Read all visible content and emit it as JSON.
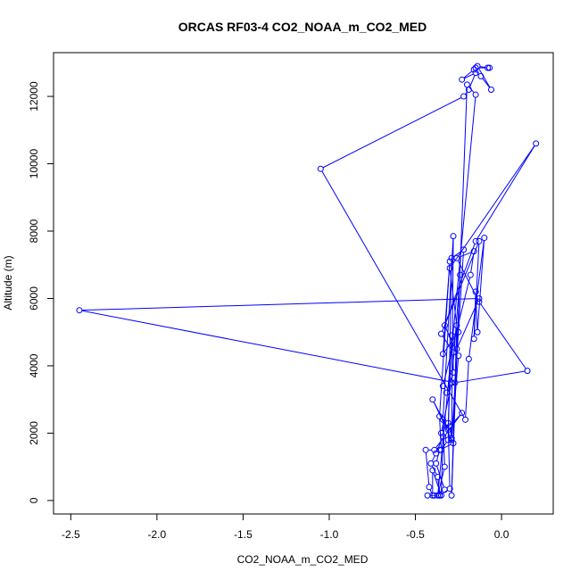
{
  "chart_data": {
    "type": "line",
    "title": "ORCAS RF03-4 CO2_NOAA_m_CO2_MED",
    "xlabel": "CO2_NOAA_m_CO2_MED",
    "ylabel": "Altitude (m)",
    "xlim": [
      -2.6,
      0.3
    ],
    "ylim": [
      -400,
      13300
    ],
    "x_ticks": [
      -2.5,
      -2.0,
      -1.5,
      -1.0,
      -0.5,
      0.0
    ],
    "x_tick_labels": [
      "-2.5",
      "-2.0",
      "-1.5",
      "-1.0",
      "-0.5",
      "0.0"
    ],
    "y_ticks": [
      0,
      2000,
      4000,
      6000,
      8000,
      10000,
      12000
    ],
    "y_tick_labels": [
      "0",
      "2000",
      "4000",
      "6000",
      "8000",
      "10000",
      "12000"
    ],
    "grid": false,
    "series_color": "#0000ff",
    "series": [
      {
        "x": [
          -0.36,
          -0.43,
          -0.39,
          -0.33,
          -0.38,
          -0.36,
          -0.28,
          -0.4,
          -0.31,
          -0.29,
          -0.25,
          -0.34,
          -0.3,
          -0.36,
          -0.35,
          -0.31,
          -0.29,
          -0.22,
          -0.29,
          -0.25,
          -0.33,
          -0.15,
          0.2,
          -0.3,
          -0.26,
          -0.29,
          -0.2,
          -0.15,
          -0.37,
          -0.33,
          -0.34,
          -0.28,
          -0.29,
          -0.3,
          -0.23,
          -0.39,
          -0.44,
          -0.42,
          -0.4,
          -0.4,
          -0.35,
          -0.34,
          -0.38,
          -0.41,
          -0.37,
          -0.36,
          -0.3,
          -0.31,
          -0.35,
          -0.29,
          -0.24,
          -0.26,
          -0.13,
          -2.45,
          -0.27,
          0.15,
          -0.13,
          -0.26,
          -0.16,
          -0.18,
          -0.34,
          -0.32,
          -0.28,
          -0.28,
          -0.35,
          -0.13,
          -0.16,
          -0.15,
          -0.14,
          -0.1,
          -0.19,
          -0.21,
          -1.05,
          -0.22,
          -0.19,
          -0.15,
          -0.23,
          -0.16,
          -0.12,
          -0.06,
          -0.14,
          -0.08,
          -0.15,
          -0.07
        ],
        "y": [
          150,
          150,
          150,
          320,
          1100,
          1500,
          1700,
          3000,
          2100,
          4900,
          5000,
          4350,
          7100,
          2500,
          1500,
          1800,
          7200,
          7450,
          1800,
          4300,
          5200,
          7700,
          10600,
          6900,
          5200,
          150,
          12350,
          12050,
          150,
          1000,
          2400,
          7850,
          1850,
          2200,
          2600,
          1500,
          1500,
          400,
          150,
          900,
          150,
          1900,
          1400,
          1100,
          700,
          150,
          350,
          2300,
          2000,
          3500,
          6700,
          4500,
          6000,
          5650,
          3500,
          3850,
          5900,
          7200,
          7400,
          6700,
          3400,
          3200,
          3800,
          4400,
          4950,
          7700,
          4800,
          6200,
          5000,
          7800,
          4200,
          2400,
          9850,
          12000,
          12200,
          12700,
          12500,
          12800,
          12600,
          12200,
          12900,
          12850,
          12850,
          12850
        ]
      }
    ]
  }
}
